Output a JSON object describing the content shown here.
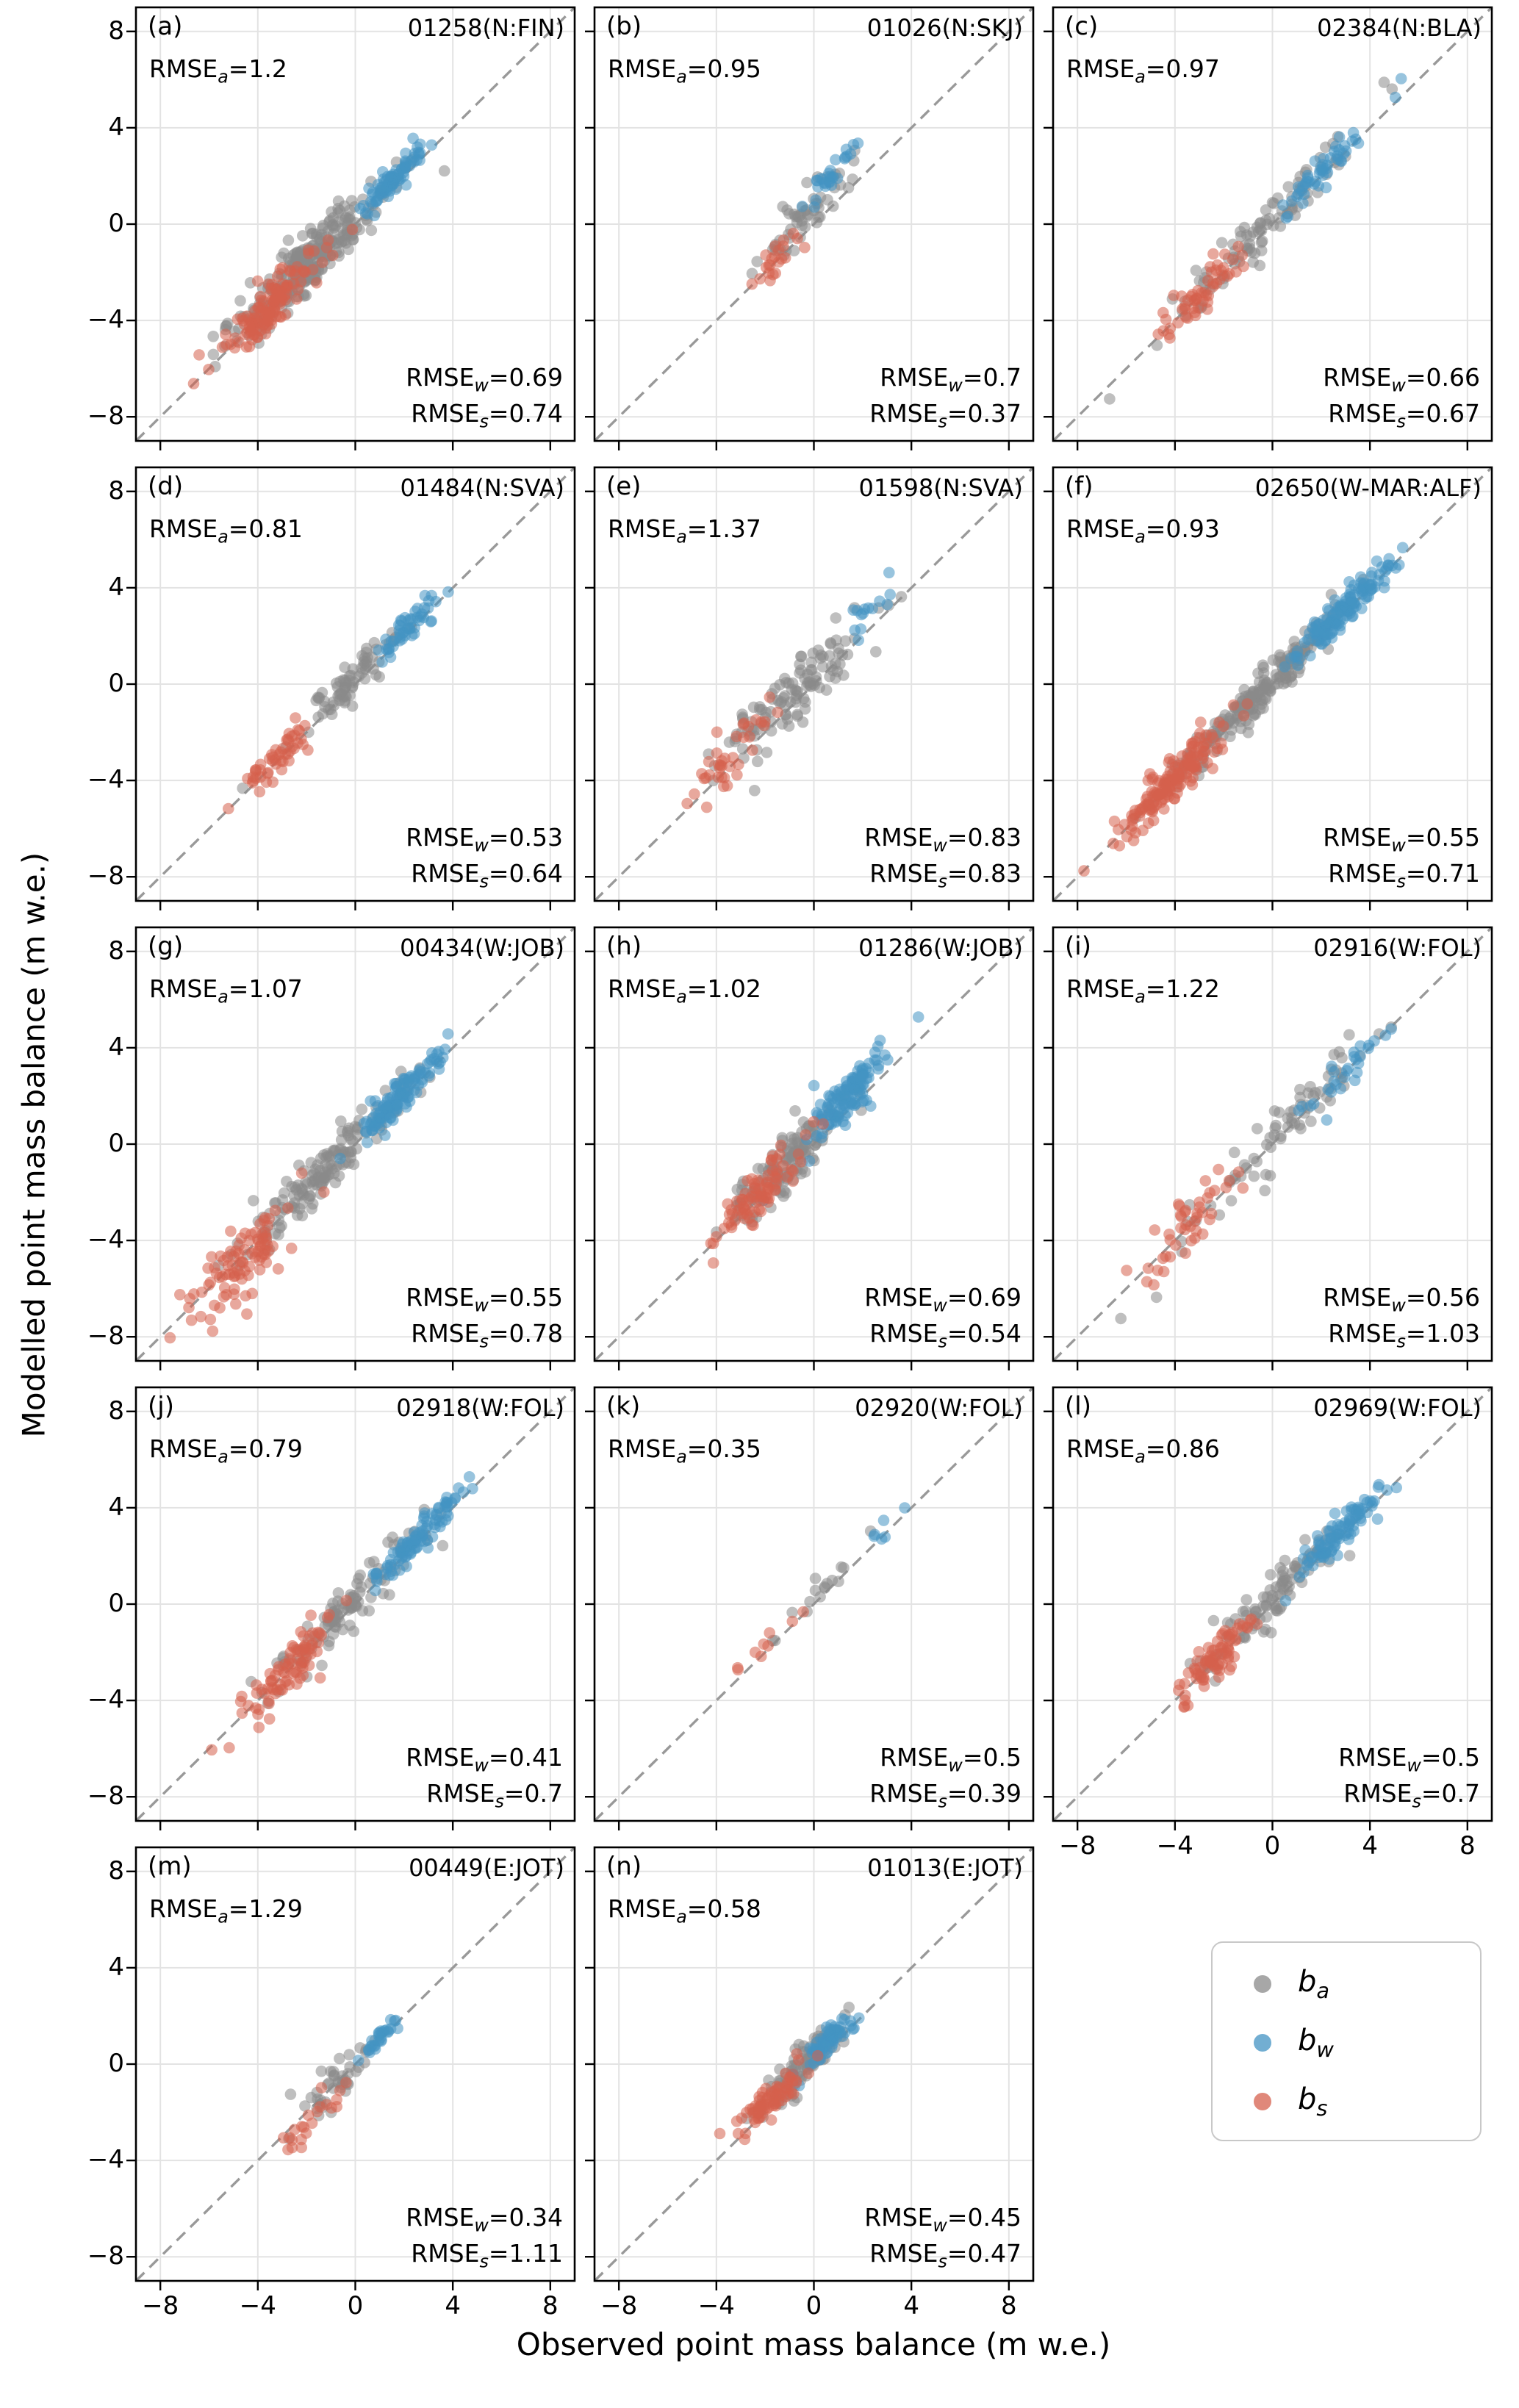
{
  "figure": {
    "ylabel": "Modelled point mass balance (m w.e.)",
    "xlabel": "Observed point mass balance (m w.e.)",
    "colors": {
      "ba": "#8a8a8a",
      "bw": "#4393c3",
      "bs": "#d6604d"
    },
    "point_alpha": 0.55
  },
  "legend": {
    "entries": [
      {
        "key": "ba",
        "base": "b",
        "sub": "a"
      },
      {
        "key": "bw",
        "base": "b",
        "sub": "w"
      },
      {
        "key": "bs",
        "base": "b",
        "sub": "s"
      }
    ]
  },
  "chart_data": {
    "type": "scatter",
    "xlim": [
      -9,
      9
    ],
    "ylim": [
      -9,
      9
    ],
    "ticks": [
      -8,
      -4,
      0,
      4,
      8
    ],
    "tick_labels": [
      "−8",
      "−4",
      "0",
      "4",
      "8"
    ],
    "grid": true,
    "identity_line": "1:1 dashed gray diagonal",
    "series_keys": [
      "ba",
      "bw",
      "bs"
    ],
    "clusters_format": "[n_points, center_x, center_y, sd_along_diagonal, sd_off_diagonal] (m w.e., estimated from figure)",
    "panels": [
      {
        "letter": "(a)",
        "title": "01258(N:FIN)",
        "rmse_a": "1.2",
        "rmse_w": "0.69",
        "rmse_s": "0.74",
        "row": 0,
        "col": 0,
        "yticks": true,
        "xticks": false,
        "clusters": {
          "ba": [
            280,
            -2.0,
            -1.7,
            1.4,
            0.6
          ],
          "bw": [
            80,
            1.6,
            1.9,
            0.55,
            0.28
          ],
          "bs": [
            130,
            -3.5,
            -3.4,
            1.0,
            0.5
          ]
        }
      },
      {
        "letter": "(b)",
        "title": "01026(N:SKJ)",
        "rmse_a": "0.95",
        "rmse_w": "0.7",
        "rmse_s": "0.37",
        "row": 0,
        "col": 1,
        "yticks": false,
        "xticks": false,
        "clusters": {
          "ba": [
            55,
            -0.4,
            0.3,
            1.0,
            0.45
          ],
          "bw": [
            28,
            0.7,
            2.0,
            0.5,
            0.3
          ],
          "bs": [
            22,
            -1.5,
            -1.4,
            0.5,
            0.35
          ]
        }
      },
      {
        "letter": "(c)",
        "title": "02384(N:BLA)",
        "rmse_a": "0.97",
        "rmse_w": "0.66",
        "rmse_s": "0.67",
        "row": 0,
        "col": 2,
        "yticks": false,
        "xticks": false,
        "clusters": {
          "ba": [
            95,
            -0.7,
            -0.4,
            2.0,
            0.55
          ],
          "bw": [
            50,
            2.1,
            2.2,
            0.8,
            0.3
          ],
          "bs": [
            55,
            -2.9,
            -2.8,
            0.9,
            0.5
          ]
        }
      },
      {
        "letter": "(d)",
        "title": "01484(N:SVA)",
        "rmse_a": "0.81",
        "rmse_w": "0.53",
        "rmse_s": "0.64",
        "row": 1,
        "col": 0,
        "yticks": true,
        "xticks": false,
        "clusters": {
          "ba": [
            75,
            -0.3,
            0.0,
            1.1,
            0.45
          ],
          "bw": [
            50,
            2.2,
            2.4,
            0.7,
            0.3
          ],
          "bs": [
            50,
            -3.2,
            -3.0,
            0.8,
            0.45
          ]
        }
      },
      {
        "letter": "(e)",
        "title": "01598(N:SVA)",
        "rmse_a": "1.37",
        "rmse_w": "0.83",
        "rmse_s": "0.83",
        "row": 1,
        "col": 1,
        "yticks": false,
        "xticks": false,
        "clusters": {
          "ba": [
            120,
            -0.8,
            -0.4,
            1.4,
            0.75
          ],
          "bw": [
            14,
            2.7,
            3.4,
            0.6,
            0.3
          ],
          "bs": [
            38,
            -3.4,
            -3.0,
            0.9,
            0.55
          ]
        }
      },
      {
        "letter": "(f)",
        "title": "02650(W-MAR:ALF)",
        "rmse_a": "0.93",
        "rmse_w": "0.55",
        "rmse_s": "0.71",
        "row": 1,
        "col": 2,
        "yticks": false,
        "xticks": false,
        "clusters": {
          "ba": [
            210,
            -0.7,
            -0.5,
            1.6,
            0.45
          ],
          "bw": [
            140,
            2.9,
            3.1,
            1.0,
            0.35
          ],
          "bs": [
            160,
            -4.1,
            -4.0,
            1.1,
            0.45
          ]
        }
      },
      {
        "letter": "(g)",
        "title": "00434(W:JOB)",
        "rmse_a": "1.07",
        "rmse_w": "0.55",
        "rmse_s": "0.78",
        "row": 2,
        "col": 0,
        "yticks": true,
        "xticks": false,
        "clusters": {
          "ba": [
            150,
            -1.5,
            -1.3,
            1.6,
            0.6
          ],
          "bw": [
            120,
            1.9,
            2.1,
            0.9,
            0.35
          ],
          "bs": [
            95,
            -4.4,
            -4.7,
            1.1,
            0.7
          ]
        }
      },
      {
        "letter": "(h)",
        "title": "01286(W:JOB)",
        "rmse_a": "1.02",
        "rmse_w": "0.69",
        "rmse_s": "0.54",
        "row": 2,
        "col": 1,
        "yticks": false,
        "xticks": false,
        "clusters": {
          "ba": [
            140,
            -1.1,
            -0.8,
            1.3,
            0.55
          ],
          "bw": [
            120,
            1.4,
            2.0,
            0.8,
            0.5
          ],
          "bs": [
            85,
            -2.3,
            -2.1,
            0.9,
            0.5
          ]
        }
      },
      {
        "letter": "(i)",
        "title": "02916(W:FOL)",
        "rmse_a": "1.22",
        "rmse_w": "0.56",
        "rmse_s": "1.03",
        "row": 2,
        "col": 2,
        "yticks": false,
        "xticks": false,
        "clusters": {
          "ba": [
            75,
            0.2,
            0.3,
            2.4,
            0.65
          ],
          "bw": [
            28,
            3.1,
            3.2,
            0.9,
            0.4
          ],
          "bs": [
            45,
            -3.4,
            -3.3,
            1.0,
            0.75
          ]
        }
      },
      {
        "letter": "(j)",
        "title": "02918(W:FOL)",
        "rmse_a": "0.79",
        "rmse_w": "0.41",
        "rmse_s": "0.7",
        "row": 3,
        "col": 0,
        "yticks": true,
        "xticks": false,
        "clusters": {
          "ba": [
            105,
            -0.4,
            -0.2,
            1.5,
            0.5
          ],
          "bw": [
            95,
            2.5,
            2.7,
            0.9,
            0.3
          ],
          "bs": [
            85,
            -2.7,
            -2.7,
            0.9,
            0.55
          ]
        }
      },
      {
        "letter": "(k)",
        "title": "02920(W:FOL)",
        "rmse_a": "0.35",
        "rmse_w": "0.5",
        "rmse_s": "0.39",
        "row": 3,
        "col": 1,
        "yticks": false,
        "xticks": false,
        "clusters": {
          "ba": [
            16,
            0.7,
            0.9,
            1.1,
            0.3
          ],
          "bw": [
            6,
            2.9,
            3.1,
            0.4,
            0.2
          ],
          "bs": [
            9,
            -2.1,
            -1.9,
            0.8,
            0.3
          ]
        }
      },
      {
        "letter": "(l)",
        "title": "02969(W:FOL)",
        "rmse_a": "0.86",
        "rmse_w": "0.5",
        "rmse_s": "0.7",
        "row": 3,
        "col": 2,
        "yticks": false,
        "xticks": true,
        "clusters": {
          "ba": [
            95,
            0.3,
            0.5,
            1.4,
            0.5
          ],
          "bw": [
            90,
            2.7,
            2.9,
            0.9,
            0.35
          ],
          "bs": [
            80,
            -2.5,
            -2.4,
            0.8,
            0.5
          ]
        }
      },
      {
        "letter": "(m)",
        "title": "00449(E:JOT)",
        "rmse_a": "1.29",
        "rmse_w": "0.34",
        "rmse_s": "1.11",
        "row": 4,
        "col": 0,
        "yticks": true,
        "xticks": true,
        "clusters": {
          "ba": [
            42,
            -0.7,
            -0.7,
            1.1,
            0.5
          ],
          "bw": [
            28,
            1.0,
            1.1,
            0.35,
            0.2
          ],
          "bs": [
            22,
            -1.9,
            -2.4,
            0.8,
            0.35
          ]
        }
      },
      {
        "letter": "(n)",
        "title": "01013(E:JOT)",
        "rmse_a": "0.58",
        "rmse_w": "0.45",
        "rmse_s": "0.47",
        "row": 4,
        "col": 1,
        "yticks": false,
        "xticks": true,
        "clusters": {
          "ba": [
            95,
            -0.4,
            0.0,
            0.8,
            0.45
          ],
          "bw": [
            65,
            0.6,
            1.0,
            0.45,
            0.3
          ],
          "bs": [
            75,
            -1.8,
            -1.5,
            0.7,
            0.4
          ]
        }
      }
    ]
  }
}
